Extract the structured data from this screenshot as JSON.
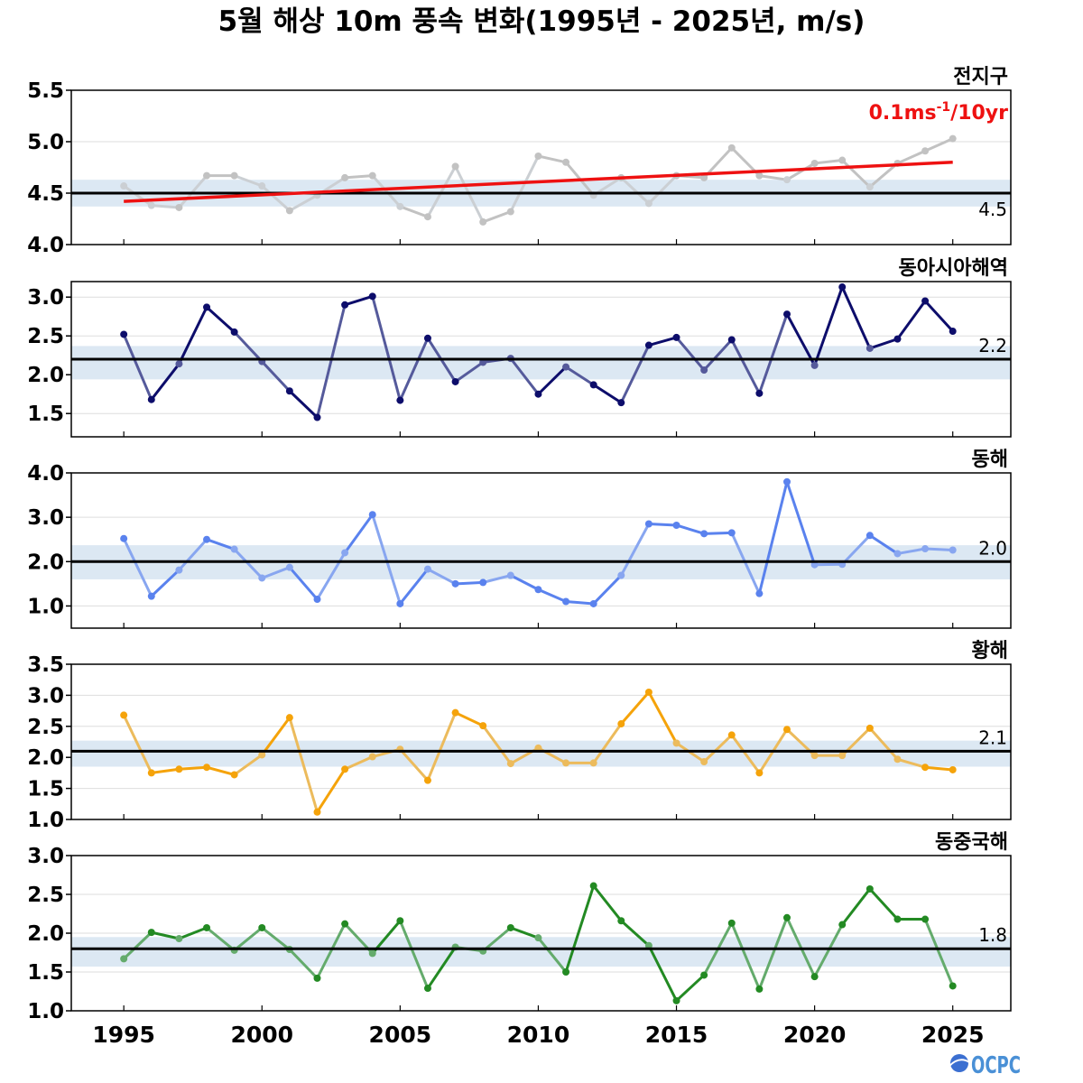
{
  "title": "5월 해상 10m 풍속 변화(1995년 - 2025년, m/s)",
  "logo_text": "OCPC",
  "colors": {
    "baseline": "#000000",
    "band": "#dce8f3",
    "trend": "#ee1111",
    "frame": "#000000"
  },
  "chart_data": [
    {
      "type": "line",
      "region": "전지구",
      "color": "#c2c2c2",
      "x": [
        1995,
        1996,
        1997,
        1998,
        1999,
        2000,
        2001,
        2002,
        2003,
        2004,
        2005,
        2006,
        2007,
        2008,
        2009,
        2010,
        2011,
        2012,
        2013,
        2014,
        2015,
        2016,
        2017,
        2018,
        2019,
        2020,
        2021,
        2022,
        2023,
        2024,
        2025
      ],
      "values": [
        4.57,
        4.38,
        4.36,
        4.67,
        4.67,
        4.57,
        4.33,
        4.48,
        4.65,
        4.67,
        4.37,
        4.27,
        4.76,
        4.22,
        4.32,
        4.86,
        4.8,
        4.48,
        4.65,
        4.4,
        4.67,
        4.65,
        4.94,
        4.67,
        4.63,
        4.79,
        4.82,
        4.56,
        4.79,
        4.91,
        5.03
      ],
      "baseline": 4.5,
      "baseline_label": "4.5",
      "band": [
        4.37,
        4.63
      ],
      "ylim": [
        4.0,
        5.5
      ],
      "yticks": [
        "4.0",
        "4.5",
        "5.0",
        "5.5"
      ],
      "trend": {
        "start": 4.42,
        "end": 4.8
      },
      "trend_label": {
        "main": "0.1ms",
        "sup": "-1",
        "tail": "/10yr"
      }
    },
    {
      "type": "line",
      "region": "동아시아해역",
      "color": "#0d0d6b",
      "x": [
        1995,
        1996,
        1997,
        1998,
        1999,
        2000,
        2001,
        2002,
        2003,
        2004,
        2005,
        2006,
        2007,
        2008,
        2009,
        2010,
        2011,
        2012,
        2013,
        2014,
        2015,
        2016,
        2017,
        2018,
        2019,
        2020,
        2021,
        2022,
        2023,
        2024,
        2025
      ],
      "values": [
        2.52,
        1.68,
        2.14,
        2.87,
        2.55,
        2.17,
        1.79,
        1.45,
        2.9,
        3.01,
        1.67,
        2.47,
        1.91,
        2.16,
        2.21,
        1.75,
        2.1,
        1.87,
        1.64,
        2.38,
        2.48,
        2.06,
        2.45,
        1.76,
        2.78,
        2.12,
        3.13,
        2.34,
        2.46,
        2.95,
        2.56
      ],
      "baseline": 2.2,
      "baseline_label": "2.2",
      "band": [
        1.94,
        2.37
      ],
      "ylim": [
        1.2,
        3.2
      ],
      "yticks": [
        "1.5",
        "2.0",
        "2.5",
        "3.0"
      ]
    },
    {
      "type": "line",
      "region": "동해",
      "color": "#5a82ee",
      "x": [
        1995,
        1996,
        1997,
        1998,
        1999,
        2000,
        2001,
        2002,
        2003,
        2004,
        2005,
        2006,
        2007,
        2008,
        2009,
        2010,
        2011,
        2012,
        2013,
        2014,
        2015,
        2016,
        2017,
        2018,
        2019,
        2020,
        2021,
        2022,
        2023,
        2024,
        2025
      ],
      "values": [
        2.52,
        1.22,
        1.81,
        2.5,
        2.28,
        1.63,
        1.87,
        1.15,
        2.2,
        3.06,
        1.05,
        1.83,
        1.5,
        1.53,
        1.69,
        1.37,
        1.1,
        1.05,
        1.69,
        2.85,
        2.82,
        2.63,
        2.65,
        1.28,
        3.8,
        1.93,
        1.94,
        2.59,
        2.18,
        2.29,
        2.26
      ],
      "baseline": 2.0,
      "baseline_label": "2.0",
      "band": [
        1.6,
        2.37
      ],
      "ylim": [
        0.5,
        4.0
      ],
      "yticks": [
        "1.0",
        "2.0",
        "3.0",
        "4.0"
      ]
    },
    {
      "type": "line",
      "region": "황해",
      "color": "#f5a30a",
      "x": [
        1995,
        1996,
        1997,
        1998,
        1999,
        2000,
        2001,
        2002,
        2003,
        2004,
        2005,
        2006,
        2007,
        2008,
        2009,
        2010,
        2011,
        2012,
        2013,
        2014,
        2015,
        2016,
        2017,
        2018,
        2019,
        2020,
        2021,
        2022,
        2023,
        2024,
        2025
      ],
      "values": [
        2.68,
        1.75,
        1.81,
        1.84,
        1.72,
        2.04,
        2.64,
        1.12,
        1.81,
        2.01,
        2.13,
        1.63,
        2.72,
        2.51,
        1.9,
        2.15,
        1.91,
        1.91,
        2.54,
        3.05,
        2.23,
        1.93,
        2.36,
        1.75,
        2.45,
        2.03,
        2.03,
        2.47,
        1.97,
        1.84,
        1.8
      ],
      "baseline": 2.1,
      "baseline_label": "2.1",
      "band": [
        1.85,
        2.27
      ],
      "ylim": [
        1.0,
        3.5
      ],
      "yticks": [
        "1.0",
        "1.5",
        "2.0",
        "2.5",
        "3.0",
        "3.5"
      ]
    },
    {
      "type": "line",
      "region": "동중국해",
      "color": "#238a23",
      "x": [
        1995,
        1996,
        1997,
        1998,
        1999,
        2000,
        2001,
        2002,
        2003,
        2004,
        2005,
        2006,
        2007,
        2008,
        2009,
        2010,
        2011,
        2012,
        2013,
        2014,
        2015,
        2016,
        2017,
        2018,
        2019,
        2020,
        2021,
        2022,
        2023,
        2024,
        2025
      ],
      "values": [
        1.67,
        2.01,
        1.93,
        2.07,
        1.78,
        2.07,
        1.79,
        1.42,
        2.12,
        1.74,
        2.16,
        1.29,
        1.82,
        1.77,
        2.07,
        1.94,
        1.5,
        2.61,
        2.16,
        1.84,
        1.13,
        1.46,
        2.13,
        1.28,
        2.2,
        1.44,
        2.11,
        2.57,
        2.18,
        2.18,
        1.32
      ],
      "baseline": 1.8,
      "baseline_label": "1.8",
      "band": [
        1.57,
        1.95
      ],
      "ylim": [
        1.0,
        3.0
      ],
      "yticks": [
        "1.0",
        "1.5",
        "2.0",
        "2.5",
        "3.0"
      ]
    }
  ],
  "x_axis": {
    "ticks": [
      "1995",
      "2000",
      "2005",
      "2010",
      "2015",
      "2020",
      "2025"
    ],
    "xlim": [
      1993.1,
      2027.1
    ]
  }
}
